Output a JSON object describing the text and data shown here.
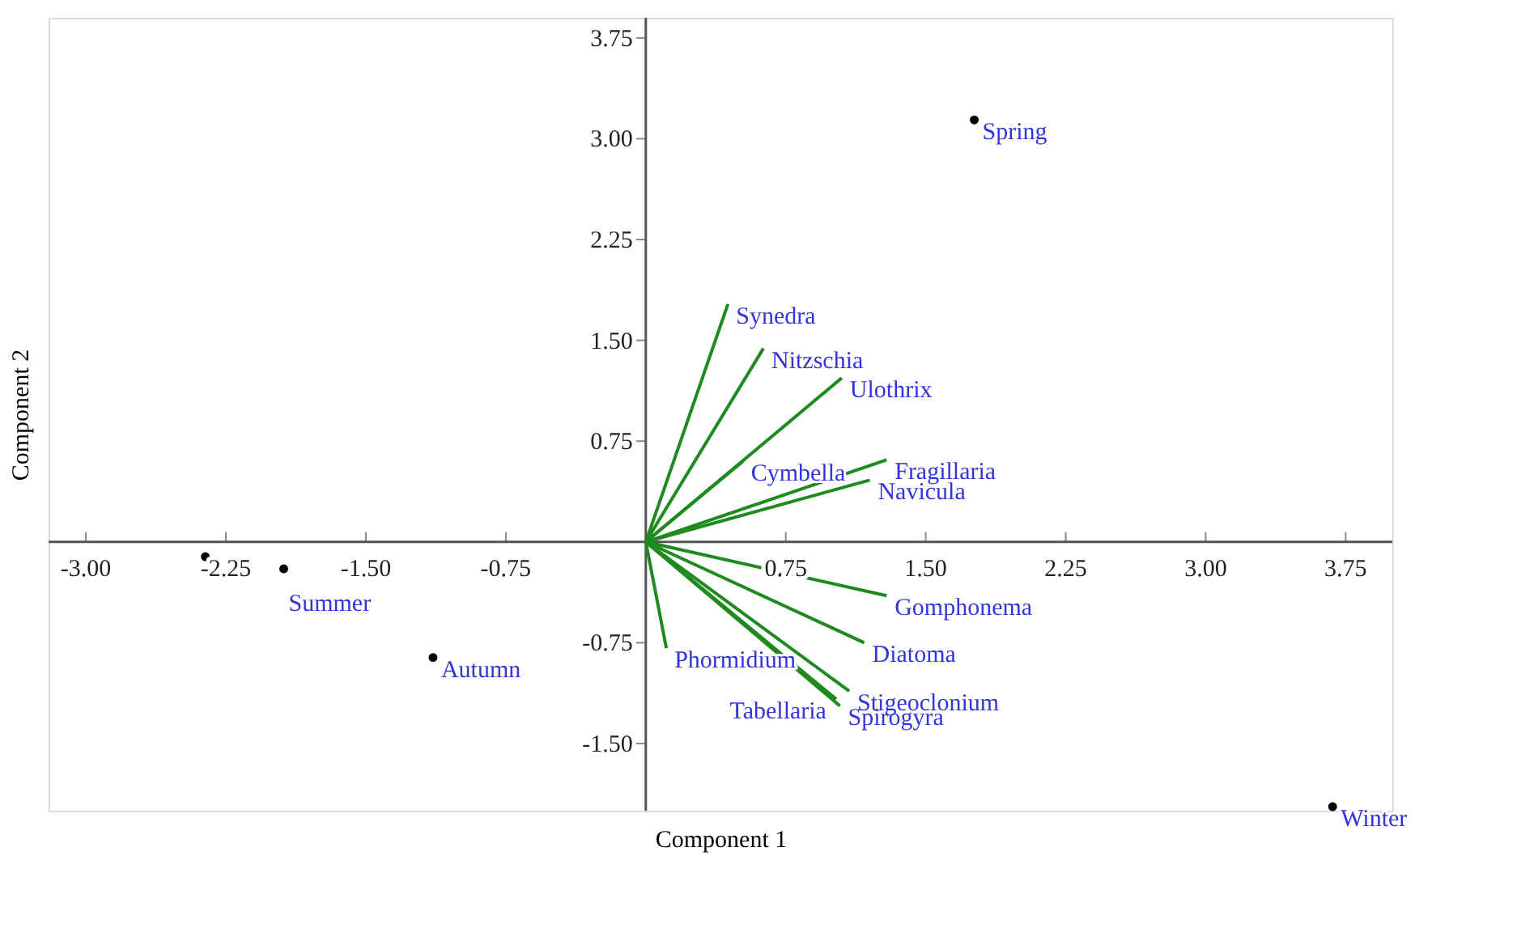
{
  "chart_data": {
    "type": "scatter",
    "xlabel": "Component 1",
    "ylabel": "Component 2",
    "xlim": [
      -3.2,
      4.0
    ],
    "ylim": [
      -2.0,
      3.9
    ],
    "xticks": [
      {
        "value": -3.0,
        "label": "-3.00"
      },
      {
        "value": -2.25,
        "label": "-2.25"
      },
      {
        "value": -1.5,
        "label": "-1.50"
      },
      {
        "value": -0.75,
        "label": "-0.75"
      },
      {
        "value": 0.75,
        "label": "0.75"
      },
      {
        "value": 1.5,
        "label": "1.50"
      },
      {
        "value": 2.25,
        "label": "2.25"
      },
      {
        "value": 3.0,
        "label": "3.00"
      },
      {
        "value": 3.75,
        "label": "3.75"
      }
    ],
    "yticks": [
      {
        "value": -1.5,
        "label": "-1.50"
      },
      {
        "value": -0.75,
        "label": "-0.75"
      },
      {
        "value": 0.75,
        "label": "0.75"
      },
      {
        "value": 1.5,
        "label": "1.50"
      },
      {
        "value": 2.25,
        "label": "2.25"
      },
      {
        "value": 3.0,
        "label": "3.00"
      },
      {
        "value": 3.75,
        "label": "3.75"
      }
    ],
    "series": [
      {
        "marker": "circle",
        "color": "#000000",
        "x": [
          -2.36,
          -1.94,
          -1.14,
          1.76,
          3.68
        ],
        "values": [
          -0.11,
          -0.2,
          -0.86,
          3.14,
          -1.97
        ]
      },
      {
        "type": "line",
        "name": "Synedra",
        "color": "#1f8a1f",
        "x": [
          0,
          0.44
        ],
        "values": [
          0,
          1.77
        ]
      },
      {
        "type": "line",
        "name": "Nitzschia",
        "color": "#1f8a1f",
        "x": [
          0,
          0.63
        ],
        "values": [
          0,
          1.44
        ]
      },
      {
        "type": "line",
        "name": "Ulothrix",
        "color": "#1f8a1f",
        "x": [
          0,
          1.05
        ],
        "values": [
          0,
          1.22
        ]
      },
      {
        "type": "line",
        "name": "Cymbella",
        "color": "#1f8a1f",
        "x": [
          0,
          0.52
        ],
        "values": [
          0,
          0.6
        ]
      },
      {
        "type": "line",
        "name": "Fragillaria",
        "color": "#1f8a1f",
        "x": [
          0,
          1.29
        ],
        "values": [
          0,
          0.61
        ]
      },
      {
        "type": "line",
        "name": "Navicula",
        "color": "#1f8a1f",
        "x": [
          0,
          1.2
        ],
        "values": [
          0,
          0.46
        ]
      },
      {
        "type": "line",
        "name": "Gomphonema",
        "color": "#1f8a1f",
        "x": [
          0,
          1.29
        ],
        "values": [
          0,
          -0.4
        ]
      },
      {
        "type": "line",
        "name": "Diatoma",
        "color": "#1f8a1f",
        "x": [
          0,
          1.17
        ],
        "values": [
          0,
          -0.75
        ]
      },
      {
        "type": "line",
        "name": "Stigeoclonium",
        "color": "#1f8a1f",
        "x": [
          0,
          1.09
        ],
        "values": [
          0,
          -1.11
        ]
      },
      {
        "type": "line",
        "name": "Spirogyra",
        "color": "#1f8a1f",
        "x": [
          0,
          1.04
        ],
        "values": [
          0,
          -1.22
        ]
      },
      {
        "type": "line",
        "name": "Tabellaria",
        "color": "#1f8a1f",
        "x": [
          0,
          1.02
        ],
        "values": [
          0,
          -1.17
        ]
      },
      {
        "type": "line",
        "name": "Phormidium",
        "color": "#1f8a1f",
        "x": [
          0,
          0.11
        ],
        "values": [
          0,
          -0.79
        ]
      }
    ],
    "annotations": [
      {
        "text": "Summer",
        "x": -1.94,
        "y": -0.2
      },
      {
        "text": "Autumn",
        "x": -1.14,
        "y": -0.86
      },
      {
        "text": "Spring",
        "x": 1.76,
        "y": 3.14
      },
      {
        "text": "Winter",
        "x": 3.68,
        "y": -1.97
      }
    ]
  }
}
